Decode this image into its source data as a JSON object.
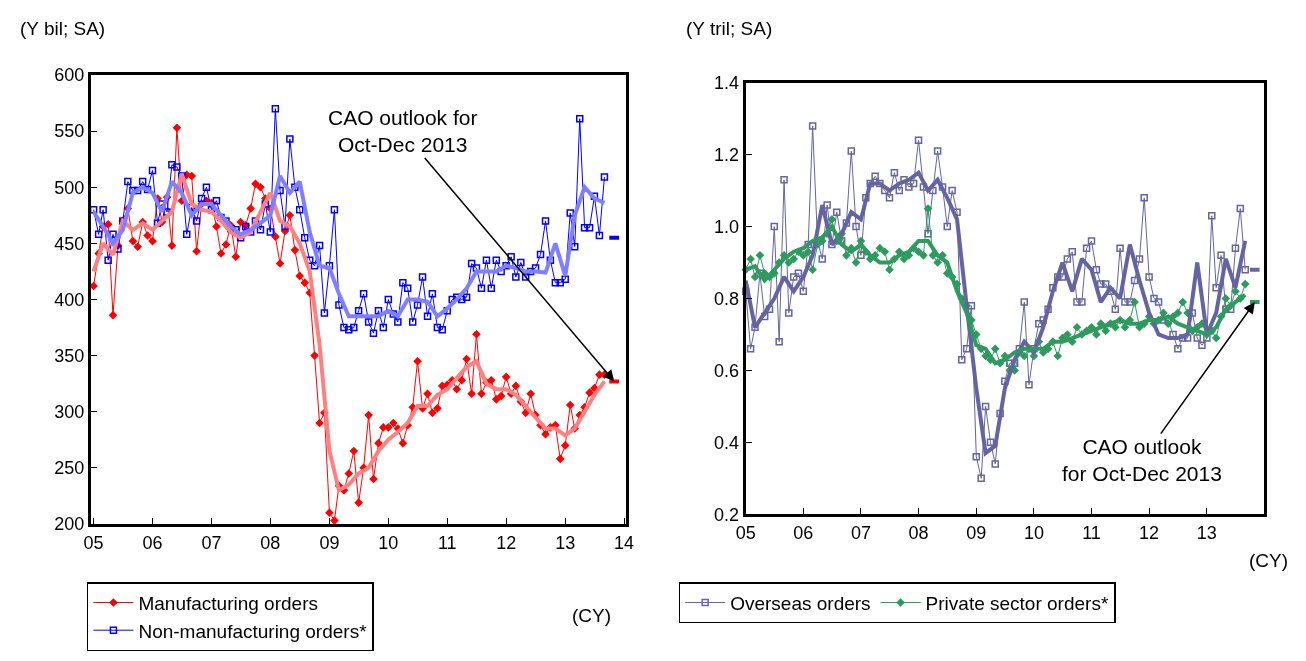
{
  "chart_data": [
    {
      "type": "line",
      "ylabel": "(Y bil; SA)",
      "xlabel": "(CY)",
      "legend": "bottom",
      "xlim": [
        "2004-12-15",
        "2014-01-15"
      ],
      "ylim": [
        200,
        600
      ],
      "yticks": [
        200,
        250,
        300,
        350,
        400,
        450,
        500,
        550,
        600
      ],
      "xticks": [
        {
          "value": "2005-01",
          "label": "05"
        },
        {
          "value": "2006-01",
          "label": "06"
        },
        {
          "value": "2007-01",
          "label": "07"
        },
        {
          "value": "2008-01",
          "label": "08"
        },
        {
          "value": "2009-01",
          "label": "09"
        },
        {
          "value": "2010-01",
          "label": "10"
        },
        {
          "value": "2011-01",
          "label": "11"
        },
        {
          "value": "2012-01",
          "label": "12"
        },
        {
          "value": "2013-01",
          "label": "13"
        },
        {
          "value": "2014-01",
          "label": "14"
        }
      ],
      "x": [
        "2005-01",
        "2005-02",
        "2005-03",
        "2005-04",
        "2005-05",
        "2005-06",
        "2005-07",
        "2005-08",
        "2005-09",
        "2005-10",
        "2005-11",
        "2005-12",
        "2006-01",
        "2006-02",
        "2006-03",
        "2006-04",
        "2006-05",
        "2006-06",
        "2006-07",
        "2006-08",
        "2006-09",
        "2006-10",
        "2006-11",
        "2006-12",
        "2007-01",
        "2007-02",
        "2007-03",
        "2007-04",
        "2007-05",
        "2007-06",
        "2007-07",
        "2007-08",
        "2007-09",
        "2007-10",
        "2007-11",
        "2007-12",
        "2008-01",
        "2008-02",
        "2008-03",
        "2008-04",
        "2008-05",
        "2008-06",
        "2008-07",
        "2008-08",
        "2008-09",
        "2008-10",
        "2008-11",
        "2008-12",
        "2009-01",
        "2009-02",
        "2009-03",
        "2009-04",
        "2009-05",
        "2009-06",
        "2009-07",
        "2009-08",
        "2009-09",
        "2009-10",
        "2009-11",
        "2009-12",
        "2010-01",
        "2010-02",
        "2010-03",
        "2010-04",
        "2010-05",
        "2010-06",
        "2010-07",
        "2010-08",
        "2010-09",
        "2010-10",
        "2010-11",
        "2010-12",
        "2011-01",
        "2011-02",
        "2011-03",
        "2011-04",
        "2011-05",
        "2011-06",
        "2011-07",
        "2011-08",
        "2011-09",
        "2011-10",
        "2011-11",
        "2011-12",
        "2012-01",
        "2012-02",
        "2012-03",
        "2012-04",
        "2012-05",
        "2012-06",
        "2012-07",
        "2012-08",
        "2012-09",
        "2012-10",
        "2012-11",
        "2012-12",
        "2013-01",
        "2013-02",
        "2013-03",
        "2013-04",
        "2013-05",
        "2013-06",
        "2013-07",
        "2013-08",
        "2013-09"
      ],
      "series": [
        {
          "type": "line",
          "name": "Manufacturing orders",
          "color": "#ff0000",
          "marker": "diamond",
          "values": [
            412,
            441,
            465,
            467,
            386,
            448,
            470,
            481,
            452,
            447,
            469,
            457,
            452,
            490,
            469,
            491,
            448,
            553,
            488,
            511,
            510,
            443,
            485,
            488,
            486,
            465,
            441,
            449,
            466,
            438,
            469,
            466,
            481,
            503,
            500,
            490,
            481,
            456,
            432,
            461,
            475,
            444,
            421,
            415,
            406,
            350,
            290,
            299,
            210,
            203,
            234,
            230,
            245,
            265,
            219,
            250,
            297,
            240,
            272,
            286,
            286,
            290,
            285,
            272,
            288,
            304,
            345,
            303,
            316,
            299,
            303,
            323,
            324,
            328,
            320,
            328,
            347,
            316,
            369,
            316,
            326,
            328,
            311,
            314,
            331,
            316,
            323,
            309,
            299,
            316,
            297,
            288,
            280,
            286,
            288,
            258,
            270,
            306,
            285,
            297,
            304,
            317,
            321,
            333,
            333
          ]
        },
        {
          "type": "line",
          "name": "Non-manufacturing orders*",
          "color": "#0000ff",
          "marker": "square",
          "values": [
            480,
            458,
            480,
            435,
            458,
            445,
            470,
            505,
            497,
            497,
            505,
            498,
            515,
            468,
            485,
            478,
            520,
            518,
            510,
            458,
            482,
            470,
            490,
            500,
            480,
            488,
            473,
            470,
            463,
            462,
            455,
            465,
            460,
            470,
            462,
            485,
            460,
            570,
            497,
            465,
            543,
            500,
            480,
            455,
            435,
            430,
            448,
            388,
            430,
            480,
            395,
            375,
            373,
            375,
            390,
            405,
            380,
            370,
            390,
            375,
            400,
            387,
            380,
            415,
            410,
            380,
            395,
            420,
            385,
            405,
            375,
            373,
            390,
            400,
            402,
            400,
            402,
            432,
            428,
            410,
            435,
            410,
            435,
            425,
            430,
            438,
            420,
            433,
            420,
            425,
            428,
            440,
            470,
            435,
            415,
            415,
            418,
            477,
            447,
            561,
            464,
            464,
            492,
            457,
            509
          ]
        },
        {
          "type": "line",
          "color": "#ff8080",
          "marker": "none",
          "x": [
            "2005-01",
            "2005-03",
            "2005-05",
            "2005-07",
            "2005-09",
            "2005-11",
            "2006-01",
            "2006-03",
            "2006-05",
            "2006-07",
            "2006-09",
            "2006-11",
            "2007-01",
            "2007-03",
            "2007-05",
            "2007-07",
            "2007-09",
            "2007-11",
            "2008-01",
            "2008-03",
            "2008-05",
            "2008-07",
            "2008-09",
            "2008-11",
            "2009-01",
            "2009-03",
            "2009-05",
            "2009-07",
            "2009-09",
            "2009-11",
            "2010-01",
            "2010-03",
            "2010-05",
            "2010-07",
            "2010-09",
            "2010-11",
            "2011-01",
            "2011-03",
            "2011-05",
            "2011-07",
            "2011-09",
            "2011-11",
            "2012-01",
            "2012-03",
            "2012-05",
            "2012-07",
            "2012-09",
            "2012-11",
            "2013-01",
            "2013-03",
            "2013-05",
            "2013-07",
            "2013-09"
          ],
          "values": [
            425,
            450,
            440,
            470,
            462,
            468,
            462,
            470,
            478,
            512,
            485,
            480,
            478,
            470,
            460,
            455,
            460,
            478,
            495,
            470,
            465,
            450,
            425,
            360,
            265,
            230,
            235,
            245,
            250,
            265,
            275,
            282,
            290,
            305,
            305,
            315,
            320,
            330,
            340,
            345,
            325,
            320,
            320,
            315,
            305,
            295,
            285,
            285,
            279,
            285,
            300,
            315,
            327
          ]
        },
        {
          "type": "line",
          "color": "#8080ff",
          "marker": "none",
          "x": [
            "2005-01",
            "2005-03",
            "2005-05",
            "2005-07",
            "2005-09",
            "2005-11",
            "2006-01",
            "2006-03",
            "2006-05",
            "2006-07",
            "2006-09",
            "2006-11",
            "2007-01",
            "2007-03",
            "2007-05",
            "2007-07",
            "2007-09",
            "2007-11",
            "2008-01",
            "2008-03",
            "2008-05",
            "2008-07",
            "2008-09",
            "2008-11",
            "2009-01",
            "2009-03",
            "2009-05",
            "2009-07",
            "2009-09",
            "2009-11",
            "2010-01",
            "2010-03",
            "2010-05",
            "2010-07",
            "2010-09",
            "2010-11",
            "2011-01",
            "2011-03",
            "2011-05",
            "2011-07",
            "2011-09",
            "2011-11",
            "2012-01",
            "2012-03",
            "2012-05",
            "2012-07",
            "2012-09",
            "2012-11",
            "2013-01",
            "2013-03",
            "2013-05",
            "2013-07",
            "2013-09"
          ],
          "values": [
            478,
            465,
            450,
            462,
            495,
            500,
            495,
            478,
            505,
            495,
            475,
            485,
            485,
            475,
            465,
            458,
            462,
            468,
            475,
            510,
            495,
            505,
            460,
            430,
            428,
            405,
            385,
            385,
            385,
            385,
            390,
            385,
            400,
            400,
            398,
            385,
            392,
            400,
            410,
            425,
            425,
            425,
            430,
            428,
            425,
            425,
            424,
            450,
            421,
            475,
            500,
            490,
            486
          ]
        },
        {
          "type": "line",
          "color": "#ff0000",
          "marker": "none",
          "x": [
            "2013-10",
            "2013-12"
          ],
          "values": [
            327,
            327
          ]
        },
        {
          "type": "line",
          "color": "#0000ff",
          "marker": "none",
          "x": [
            "2013-10",
            "2013-12"
          ],
          "values": [
            455,
            455
          ]
        }
      ],
      "annotations": [
        {
          "text": "CAO outlook for\nOct-Dec 2013",
          "x": "2013-11",
          "y": 327
        }
      ]
    },
    {
      "type": "line",
      "ylabel": "(Y tril; SA)",
      "xlabel": "(CY)",
      "legend": "bottom",
      "xlim": [
        "2005-01",
        "2014-01"
      ],
      "ylim": [
        0.2,
        1.4
      ],
      "yticks": [
        0.2,
        0.4,
        0.6,
        0.8,
        {
          "value": 1.0,
          "label": "1.0"
        },
        1.2,
        1.4
      ],
      "xticks": [
        {
          "value": "2005-01",
          "label": "05"
        },
        {
          "value": "2006-01",
          "label": "06"
        },
        {
          "value": "2007-01",
          "label": "07"
        },
        {
          "value": "2008-01",
          "label": "08"
        },
        {
          "value": "2009-01",
          "label": "09"
        },
        {
          "value": "2010-01",
          "label": "10"
        },
        {
          "value": "2011-01",
          "label": "11"
        },
        {
          "value": "2012-01",
          "label": "12"
        },
        {
          "value": "2013-01",
          "label": "13"
        }
      ],
      "x": [
        "2005-01",
        "2005-02",
        "2005-03",
        "2005-04",
        "2005-05",
        "2005-06",
        "2005-07",
        "2005-08",
        "2005-09",
        "2005-10",
        "2005-11",
        "2005-12",
        "2006-01",
        "2006-02",
        "2006-03",
        "2006-04",
        "2006-05",
        "2006-06",
        "2006-07",
        "2006-08",
        "2006-09",
        "2006-10",
        "2006-11",
        "2006-12",
        "2007-01",
        "2007-02",
        "2007-03",
        "2007-04",
        "2007-05",
        "2007-06",
        "2007-07",
        "2007-08",
        "2007-09",
        "2007-10",
        "2007-11",
        "2007-12",
        "2008-01",
        "2008-02",
        "2008-03",
        "2008-04",
        "2008-05",
        "2008-06",
        "2008-07",
        "2008-08",
        "2008-09",
        "2008-10",
        "2008-11",
        "2008-12",
        "2009-01",
        "2009-02",
        "2009-03",
        "2009-04",
        "2009-05",
        "2009-06",
        "2009-07",
        "2009-08",
        "2009-09",
        "2009-10",
        "2009-11",
        "2009-12",
        "2010-01",
        "2010-02",
        "2010-03",
        "2010-04",
        "2010-05",
        "2010-06",
        "2010-07",
        "2010-08",
        "2010-09",
        "2010-10",
        "2010-11",
        "2010-12",
        "2011-01",
        "2011-02",
        "2011-03",
        "2011-04",
        "2011-05",
        "2011-06",
        "2011-07",
        "2011-08",
        "2011-09",
        "2011-10",
        "2011-11",
        "2011-12",
        "2012-01",
        "2012-02",
        "2012-03",
        "2012-04",
        "2012-05",
        "2012-06",
        "2012-07",
        "2012-08",
        "2012-09",
        "2012-10",
        "2012-11",
        "2012-12",
        "2013-01",
        "2013-02",
        "2013-03",
        "2013-04",
        "2013-05",
        "2013-06",
        "2013-07",
        "2013-08",
        "2013-09"
      ],
      "series": [
        {
          "type": "line",
          "name": "Overseas orders",
          "color": "#6464a0",
          "marker": "square",
          "values": [
            0.82,
            0.66,
            0.72,
            0.87,
            0.75,
            0.77,
            1.0,
            0.68,
            1.13,
            0.76,
            0.86,
            0.87,
            0.82,
            0.95,
            1.28,
            0.96,
            0.91,
            1.06,
            0.95,
            1.04,
            0.96,
            1.01,
            1.21,
            1.0,
            0.92,
            1.08,
            1.12,
            1.14,
            1.12,
            1.1,
            1.08,
            1.15,
            1.1,
            1.13,
            1.11,
            1.12,
            1.24,
            1.11,
            0.98,
            1.1,
            1.21,
            1.11,
            1.0,
            1.1,
            1.04,
            0.63,
            0.66,
            0.78,
            0.36,
            0.3,
            0.5,
            0.4,
            0.34,
            0.48,
            0.57,
            0.62,
            0.62,
            0.66,
            0.79,
            0.56,
            0.66,
            0.73,
            0.74,
            0.77,
            0.83,
            0.86,
            0.86,
            0.91,
            0.93,
            0.79,
            0.79,
            0.94,
            0.96,
            0.88,
            0.84,
            0.84,
            0.82,
            0.77,
            0.94,
            0.79,
            0.79,
            0.85,
            0.91,
            1.08,
            0.86,
            0.8,
            0.79,
            0.74,
            0.74,
            0.7,
            0.66,
            0.69,
            0.69,
            0.76,
            0.69,
            0.67,
            0.69,
            1.03,
            0.83,
            0.92,
            0.77,
            0.77,
            0.94,
            1.05,
            0.88
          ]
        },
        {
          "type": "line",
          "name": "Private sector orders*",
          "color": "#2e9a5e",
          "marker": "diamond",
          "values": [
            0.88,
            0.91,
            0.86,
            0.92,
            0.87,
            0.86,
            0.87,
            0.9,
            0.92,
            0.9,
            0.91,
            0.93,
            0.92,
            0.93,
            0.88,
            0.95,
            0.96,
            0.98,
            1.02,
            0.96,
            0.98,
            0.92,
            0.94,
            0.9,
            0.96,
            0.93,
            0.91,
            0.92,
            0.94,
            0.93,
            0.88,
            0.91,
            0.93,
            0.91,
            0.92,
            0.94,
            0.93,
            0.92,
            1.05,
            0.92,
            0.9,
            0.92,
            0.87,
            0.86,
            0.84,
            0.8,
            0.78,
            0.74,
            0.7,
            0.66,
            0.64,
            0.63,
            0.66,
            0.62,
            0.64,
            0.6,
            0.6,
            0.65,
            0.64,
            0.66,
            0.64,
            0.68,
            0.65,
            0.66,
            0.68,
            0.64,
            0.69,
            0.7,
            0.68,
            0.72,
            0.7,
            0.71,
            0.72,
            0.7,
            0.73,
            0.71,
            0.73,
            0.72,
            0.74,
            0.72,
            0.74,
            0.79,
            0.72,
            0.73,
            0.75,
            0.73,
            0.74,
            0.76,
            0.73,
            0.75,
            0.76,
            0.79,
            0.76,
            0.71,
            0.72,
            0.73,
            0.7,
            0.71,
            0.69,
            0.75,
            0.8,
            0.78,
            0.82,
            0.8,
            0.84
          ]
        },
        {
          "type": "line",
          "color": "#6464a0",
          "marker": "none",
          "x": [
            "2005-01",
            "2005-03",
            "2005-05",
            "2005-07",
            "2005-09",
            "2005-11",
            "2006-01",
            "2006-03",
            "2006-05",
            "2006-07",
            "2006-09",
            "2006-11",
            "2007-01",
            "2007-03",
            "2007-05",
            "2007-07",
            "2007-09",
            "2007-11",
            "2008-01",
            "2008-03",
            "2008-05",
            "2008-07",
            "2008-09",
            "2008-11",
            "2009-01",
            "2009-03",
            "2009-05",
            "2009-07",
            "2009-09",
            "2009-11",
            "2010-01",
            "2010-03",
            "2010-05",
            "2010-07",
            "2010-09",
            "2010-11",
            "2011-01",
            "2011-03",
            "2011-05",
            "2011-07",
            "2011-09",
            "2011-11",
            "2012-01",
            "2012-03",
            "2012-05",
            "2012-07",
            "2012-09",
            "2012-11",
            "2013-01",
            "2013-03",
            "2013-05",
            "2013-07",
            "2013-09"
          ],
          "values": [
            0.85,
            0.72,
            0.76,
            0.8,
            0.86,
            0.82,
            0.86,
            0.92,
            1.06,
            0.95,
            0.98,
            1.04,
            1.02,
            1.12,
            1.12,
            1.1,
            1.12,
            1.13,
            1.15,
            1.1,
            1.13,
            1.08,
            1.02,
            0.78,
            0.55,
            0.37,
            0.39,
            0.55,
            0.63,
            0.68,
            0.65,
            0.72,
            0.82,
            0.9,
            0.82,
            0.91,
            0.88,
            0.79,
            0.83,
            0.8,
            0.95,
            0.85,
            0.76,
            0.7,
            0.69,
            0.69,
            0.7,
            0.9,
            0.7,
            0.76,
            0.91,
            0.83,
            0.96
          ]
        },
        {
          "type": "line",
          "color": "#2e9a5e",
          "marker": "none",
          "x": [
            "2005-01",
            "2005-03",
            "2005-05",
            "2005-07",
            "2005-09",
            "2005-11",
            "2006-01",
            "2006-03",
            "2006-05",
            "2006-07",
            "2006-09",
            "2006-11",
            "2007-01",
            "2007-03",
            "2007-05",
            "2007-07",
            "2007-09",
            "2007-11",
            "2008-01",
            "2008-03",
            "2008-05",
            "2008-07",
            "2008-09",
            "2008-11",
            "2009-01",
            "2009-03",
            "2009-05",
            "2009-07",
            "2009-09",
            "2009-11",
            "2010-01",
            "2010-03",
            "2010-05",
            "2010-07",
            "2010-09",
            "2010-11",
            "2011-01",
            "2011-03",
            "2011-05",
            "2011-07",
            "2011-09",
            "2011-11",
            "2012-01",
            "2012-03",
            "2012-05",
            "2012-07",
            "2012-09",
            "2012-11",
            "2013-01",
            "2013-03",
            "2013-05",
            "2013-07",
            "2013-09"
          ],
          "values": [
            0.88,
            0.89,
            0.85,
            0.88,
            0.91,
            0.93,
            0.94,
            0.96,
            0.97,
            1.0,
            0.95,
            0.93,
            0.95,
            0.92,
            0.9,
            0.9,
            0.92,
            0.93,
            0.96,
            0.96,
            0.92,
            0.9,
            0.82,
            0.76,
            0.67,
            0.66,
            0.62,
            0.63,
            0.65,
            0.66,
            0.66,
            0.66,
            0.68,
            0.68,
            0.69,
            0.7,
            0.71,
            0.72,
            0.73,
            0.74,
            0.73,
            0.73,
            0.74,
            0.74,
            0.75,
            0.73,
            0.72,
            0.71,
            0.7,
            0.72,
            0.77,
            0.79,
            0.81
          ]
        },
        {
          "type": "line",
          "color": "#6464a0",
          "marker": "none",
          "x": [
            "2013-10",
            "2013-12"
          ],
          "values": [
            0.88,
            0.88
          ]
        },
        {
          "type": "line",
          "color": "#2e9a5e",
          "marker": "none",
          "x": [
            "2013-10",
            "2013-12"
          ],
          "values": [
            0.79,
            0.79
          ]
        }
      ],
      "annotations": [
        {
          "text": "CAO outlook\nfor Oct-Dec 2013",
          "x": "2013-11",
          "y": 0.79
        }
      ]
    }
  ]
}
